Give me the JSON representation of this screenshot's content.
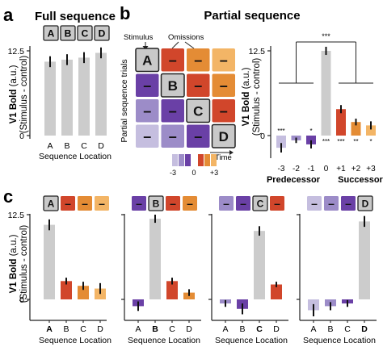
{
  "panel_letters": {
    "a": "a",
    "b": "b",
    "c": "c"
  },
  "headers": {
    "full": "Full sequence",
    "partial": "Partial sequence"
  },
  "colors": {
    "bar_gray": "#cccccc",
    "A": "#cfcfcf",
    "B": "#6a40a6",
    "C": "#6a40a6",
    "D": "#d1462b",
    "c_neg3": "#c5bedf",
    "c_neg2": "#9c8cc8",
    "c_neg1": "#6a40a6",
    "c_p1": "#d1462b",
    "c_p2": "#e48c35",
    "c_p3": "#f3b566",
    "axis": "#222222",
    "error": "#111111",
    "box_gray": "#c9c9c9"
  },
  "common": {
    "ylabel_main": "V1 Bold",
    "ylabel_unit": "(a.u.)",
    "ylabel_sub": "(Stimulus - control)",
    "xlabel": "Sequence Location",
    "ytick_top": "12.5",
    "ytick_zero": "0",
    "dash": "–"
  },
  "schematic": {
    "stimulus_label": "Stimulus",
    "omissions_label": "Omissions",
    "y_label": "Partial sequence trials",
    "time_label": "Time",
    "letters": [
      "A",
      "B",
      "C",
      "D"
    ],
    "grid": [
      [
        "A",
        "D",
        "p2",
        "p3"
      ],
      [
        "neg1",
        "B",
        "D",
        "p2"
      ],
      [
        "neg2",
        "neg1",
        "C",
        "D"
      ],
      [
        "neg3",
        "neg2",
        "neg1",
        "D"
      ]
    ],
    "legend_ticks": [
      "-3",
      "0",
      "+3"
    ]
  },
  "chart_data": [
    {
      "id": "a",
      "type": "bar",
      "header_boxes": [
        "A",
        "B",
        "C",
        "D"
      ],
      "categories": [
        "A",
        "B",
        "C",
        "D"
      ],
      "values": [
        10.9,
        11.2,
        11.5,
        12.2
      ],
      "errors": [
        0.8,
        0.8,
        0.8,
        0.8
      ],
      "colors": [
        "gray",
        "gray",
        "gray",
        "gray"
      ],
      "ylim": [
        0,
        12.5
      ],
      "yticks": [
        "0",
        "12.5"
      ],
      "ylabel": "V1 Bold (a.u.) (Stimulus - control)",
      "xlabel": "Sequence Location"
    },
    {
      "id": "b",
      "type": "bar",
      "categories": [
        "-3",
        "-2",
        "-1",
        "0",
        "+1",
        "+2",
        "+3"
      ],
      "values": [
        -1.8,
        -0.7,
        -1.3,
        12.5,
        3.9,
        2.0,
        1.5
      ],
      "errors": [
        0.7,
        0.4,
        0.6,
        0.6,
        0.6,
        0.5,
        0.6
      ],
      "colors": [
        "neg3",
        "neg2",
        "neg1",
        "gray",
        "p1",
        "p2",
        "p3"
      ],
      "significance": [
        "***",
        "",
        "*",
        "***",
        "***",
        "**",
        "*"
      ],
      "bracket": "***",
      "group_labels": [
        "Predecessor",
        "Successor"
      ],
      "ylim": [
        -3,
        12.5
      ],
      "yticks": [
        "0",
        "12.5"
      ],
      "ylabel": "V1 Bold (a.u.) (Stimulus - control)"
    },
    {
      "id": "c1",
      "type": "bar",
      "header_boxes": [
        "A",
        "–",
        "–",
        "–"
      ],
      "categories": [
        "A",
        "B",
        "C",
        "D"
      ],
      "bold_index": 0,
      "values": [
        11.0,
        2.7,
        2.0,
        1.6
      ],
      "errors": [
        0.8,
        0.5,
        0.6,
        0.8
      ],
      "colors": [
        "gray",
        "p1",
        "p2",
        "p3"
      ],
      "ylim": [
        -2,
        12.5
      ],
      "yticks": [
        "0",
        "12.5"
      ],
      "xlabel": "Sequence Location"
    },
    {
      "id": "c2",
      "type": "bar",
      "header_boxes": [
        "–",
        "B",
        "–",
        "–"
      ],
      "categories": [
        "A",
        "B",
        "C",
        "D"
      ],
      "bold_index": 1,
      "values": [
        -1.0,
        11.9,
        2.7,
        1.0
      ],
      "errors": [
        0.7,
        0.6,
        0.5,
        0.5
      ],
      "colors": [
        "neg1",
        "gray",
        "p1",
        "p2"
      ],
      "ylim": [
        -2,
        12.5
      ],
      "xlabel": "Sequence Location"
    },
    {
      "id": "c3",
      "type": "bar",
      "header_boxes": [
        "–",
        "–",
        "C",
        "–"
      ],
      "categories": [
        "A",
        "B",
        "C",
        "D"
      ],
      "bold_index": 2,
      "values": [
        -0.6,
        -1.4,
        10.1,
        2.2
      ],
      "errors": [
        0.5,
        0.8,
        0.7,
        0.4
      ],
      "colors": [
        "neg2",
        "neg1",
        "gray",
        "p1"
      ],
      "ylim": [
        -2,
        12.5
      ],
      "xlabel": "Sequence Location"
    },
    {
      "id": "c4",
      "type": "bar",
      "header_boxes": [
        "–",
        "–",
        "–",
        "D"
      ],
      "categories": [
        "A",
        "B",
        "C",
        "D"
      ],
      "bold_index": 3,
      "values": [
        -1.6,
        -1.0,
        -0.6,
        11.5
      ],
      "errors": [
        0.9,
        0.6,
        0.5,
        0.8
      ],
      "colors": [
        "neg3",
        "neg2",
        "neg1",
        "gray"
      ],
      "ylim": [
        -2,
        12.5
      ],
      "xlabel": "Sequence Location"
    }
  ]
}
